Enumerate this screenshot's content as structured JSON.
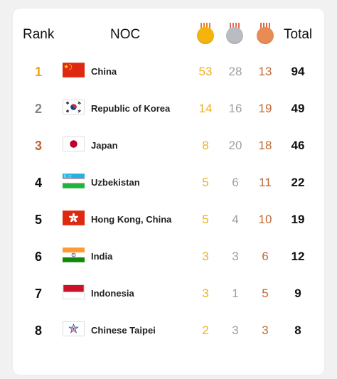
{
  "header": {
    "rank": "Rank",
    "noc": "NOC",
    "total": "Total",
    "medal_icons": [
      "gold-medal-icon",
      "silver-medal-icon",
      "bronze-medal-icon"
    ]
  },
  "colors": {
    "gold": "#f1b11c",
    "silver": "#9aa0a6",
    "bronze": "#c06a35",
    "rank1": "#f2a30f",
    "rank2": "#7d858c",
    "rank3": "#bf6230"
  },
  "rows": [
    {
      "rank": "1",
      "country": "China",
      "flag": "china-flag-icon",
      "gold": "53",
      "silver": "28",
      "bronze": "13",
      "total": "94"
    },
    {
      "rank": "2",
      "country": "Republic of Korea",
      "flag": "korea-flag-icon",
      "gold": "14",
      "silver": "16",
      "bronze": "19",
      "total": "49"
    },
    {
      "rank": "3",
      "country": "Japan",
      "flag": "japan-flag-icon",
      "gold": "8",
      "silver": "20",
      "bronze": "18",
      "total": "46"
    },
    {
      "rank": "4",
      "country": "Uzbekistan",
      "flag": "uzbekistan-flag-icon",
      "gold": "5",
      "silver": "6",
      "bronze": "11",
      "total": "22"
    },
    {
      "rank": "5",
      "country": "Hong Kong, China",
      "flag": "hong-kong-flag-icon",
      "gold": "5",
      "silver": "4",
      "bronze": "10",
      "total": "19"
    },
    {
      "rank": "6",
      "country": "India",
      "flag": "india-flag-icon",
      "gold": "3",
      "silver": "3",
      "bronze": "6",
      "total": "12"
    },
    {
      "rank": "7",
      "country": "Indonesia",
      "flag": "indonesia-flag-icon",
      "gold": "3",
      "silver": "1",
      "bronze": "5",
      "total": "9"
    },
    {
      "rank": "8",
      "country": "Chinese Taipei",
      "flag": "chinese-taipei-flag-icon",
      "gold": "2",
      "silver": "3",
      "bronze": "3",
      "total": "8"
    }
  ]
}
